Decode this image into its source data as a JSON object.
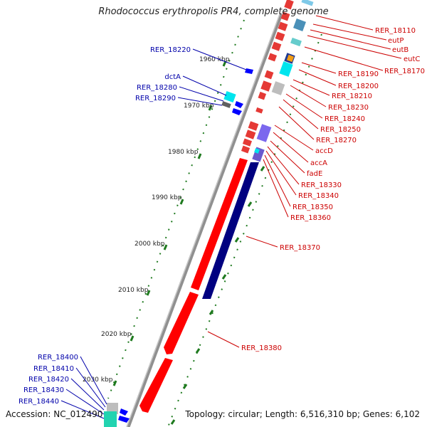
{
  "title": "Rhodococcus erythropolis PR4, complete genome",
  "accession_text": "Accession: NC_012490",
  "summary_text": "Topology: circular; Length: 6,516,310 bp; Genes: 6,102",
  "colors": {
    "forward_gene": "#ff0000",
    "reverse_gene": "#0000ff",
    "forward_label": "#cc0000",
    "reverse_label": "#0000aa",
    "long_strand": "#000080",
    "tick_mark": "#2e7d2e"
  },
  "scale_ticks": [
    "1960 kbp",
    "1970 kbp",
    "1980 kbp",
    "1990 kbp",
    "2000 kbp",
    "2010 kbp",
    "2020 kbp",
    "2030 kbp"
  ],
  "right_labels": [
    "RER_18110",
    "eutP",
    "eutB",
    "eutC",
    "RER_18170",
    "RER_18190",
    "RER_18200",
    "RER_18210",
    "RER_18230",
    "RER_18240",
    "RER_18250",
    "RER_18270",
    "accD",
    "accA",
    "fadE",
    "RER_18330",
    "RER_18340",
    "RER_18350",
    "RER_18360",
    "RER_18370",
    "RER_18380"
  ],
  "left_labels": [
    "RER_18220",
    "dctA",
    "RER_18280",
    "RER_18290",
    "RER_18400",
    "RER_18410",
    "RER_18420",
    "RER_18430",
    "RER_18440"
  ]
}
